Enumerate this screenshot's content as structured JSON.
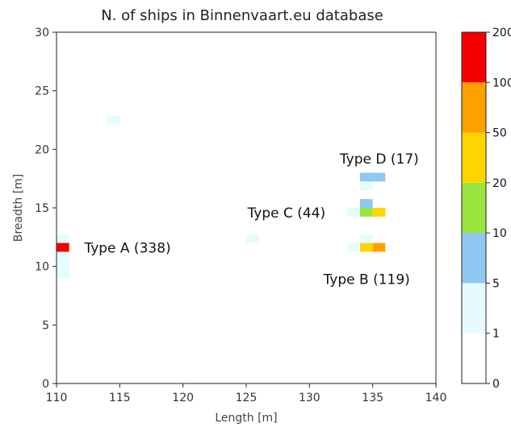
{
  "chart_data": {
    "type": "heatmap",
    "title": "N. of ships in Binnenvaart.eu database",
    "xlabel": "Length [m]",
    "ylabel": "Breadth [m]",
    "xlim": [
      110,
      140
    ],
    "ylim": [
      0,
      30
    ],
    "x_ticks": [
      "110",
      "115",
      "120",
      "125",
      "130",
      "135",
      "140"
    ],
    "y_ticks": [
      "0",
      "5",
      "10",
      "15",
      "20",
      "25",
      "30"
    ],
    "bin_size": {
      "length": 1,
      "breadth": 0.75
    },
    "colorbar": {
      "boundaries": [
        0,
        1,
        5,
        10,
        20,
        50,
        100,
        200
      ],
      "tick_labels": [
        "0",
        "1",
        "5",
        "10",
        "20",
        "50",
        "100",
        "200"
      ],
      "colors": [
        "#ffffff",
        "#e6fbfd",
        "#8fc8f2",
        "#9be33f",
        "#ffd400",
        "#ff9f00",
        "#f50000"
      ]
    },
    "cells": [
      {
        "length": 110.5,
        "breadth": 12.375,
        "count": 2
      },
      {
        "length": 110.5,
        "breadth": 11.625,
        "count": 150
      },
      {
        "length": 110.5,
        "breadth": 10.875,
        "count": 2
      },
      {
        "length": 110.5,
        "breadth": 10.125,
        "count": 2
      },
      {
        "length": 110.5,
        "breadth": 9.375,
        "count": 2
      },
      {
        "length": 114.5,
        "breadth": 22.5,
        "count": 2
      },
      {
        "length": 125.5,
        "breadth": 12.375,
        "count": 2
      },
      {
        "length": 133.5,
        "breadth": 14.625,
        "count": 2
      },
      {
        "length": 133.5,
        "breadth": 11.625,
        "count": 2
      },
      {
        "length": 134.5,
        "breadth": 17.625,
        "count": 7
      },
      {
        "length": 135.5,
        "breadth": 17.625,
        "count": 7
      },
      {
        "length": 134.5,
        "breadth": 16.875,
        "count": 2
      },
      {
        "length": 134.5,
        "breadth": 15.375,
        "count": 7
      },
      {
        "length": 134.5,
        "breadth": 14.625,
        "count": 15
      },
      {
        "length": 135.5,
        "breadth": 14.625,
        "count": 30
      },
      {
        "length": 134.5,
        "breadth": 12.375,
        "count": 2
      },
      {
        "length": 134.5,
        "breadth": 11.625,
        "count": 30
      },
      {
        "length": 135.5,
        "breadth": 11.625,
        "count": 70
      }
    ],
    "annotations": [
      {
        "text": "Type A (338)",
        "length": 112.2,
        "breadth": 11.6
      },
      {
        "text": "Type B (119)",
        "length": 131.1,
        "breadth": 8.9
      },
      {
        "text": "Type C (44)",
        "length": 125.1,
        "breadth": 14.6
      },
      {
        "text": "Type D (17)",
        "length": 132.4,
        "breadth": 19.2
      }
    ]
  }
}
